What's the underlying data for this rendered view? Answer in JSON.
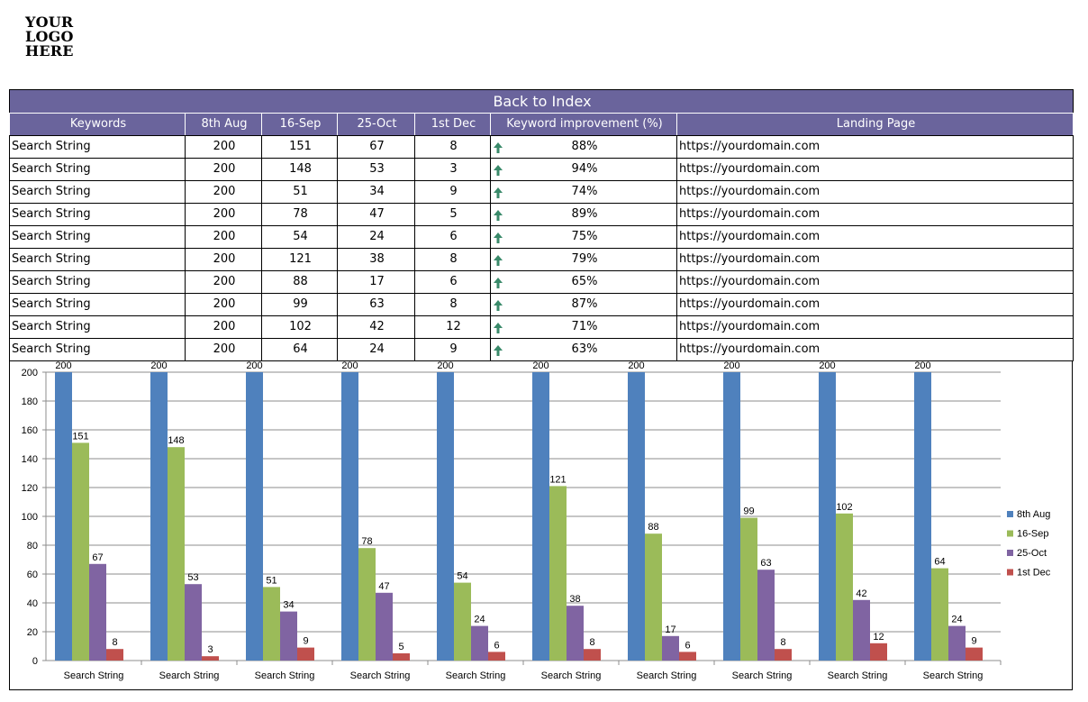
{
  "logo": {
    "lines": [
      "YOUR",
      "LOGO",
      "HERE"
    ]
  },
  "table": {
    "title": "Back to Index",
    "headers": [
      "Keywords",
      "8th Aug",
      "16-Sep",
      "25-Oct",
      "1st Dec",
      "Keyword improvement (%)",
      "Landing Page"
    ],
    "improvement_icon": "up-arrow-icon",
    "arrow_color": "#3a8a6a",
    "rows": [
      {
        "keyword": "Search String",
        "aug": "200",
        "sep": "151",
        "oct": "67",
        "dec": "8",
        "improvement": "88%",
        "page": "https://yourdomain.com"
      },
      {
        "keyword": "Search String",
        "aug": "200",
        "sep": "148",
        "oct": "53",
        "dec": "3",
        "improvement": "94%",
        "page": "https://yourdomain.com"
      },
      {
        "keyword": "Search String",
        "aug": "200",
        "sep": "51",
        "oct": "34",
        "dec": "9",
        "improvement": "74%",
        "page": "https://yourdomain.com"
      },
      {
        "keyword": "Search String",
        "aug": "200",
        "sep": "78",
        "oct": "47",
        "dec": "5",
        "improvement": "89%",
        "page": "https://yourdomain.com"
      },
      {
        "keyword": "Search String",
        "aug": "200",
        "sep": "54",
        "oct": "24",
        "dec": "6",
        "improvement": "75%",
        "page": "https://yourdomain.com"
      },
      {
        "keyword": "Search String",
        "aug": "200",
        "sep": "121",
        "oct": "38",
        "dec": "8",
        "improvement": "79%",
        "page": "https://yourdomain.com"
      },
      {
        "keyword": "Search String",
        "aug": "200",
        "sep": "88",
        "oct": "17",
        "dec": "6",
        "improvement": "65%",
        "page": "https://yourdomain.com"
      },
      {
        "keyword": "Search String",
        "aug": "200",
        "sep": "99",
        "oct": "63",
        "dec": "8",
        "improvement": "87%",
        "page": "https://yourdomain.com"
      },
      {
        "keyword": "Search String",
        "aug": "200",
        "sep": "102",
        "oct": "42",
        "dec": "12",
        "improvement": "71%",
        "page": "https://yourdomain.com"
      },
      {
        "keyword": "Search String",
        "aug": "200",
        "sep": "64",
        "oct": "24",
        "dec": "9",
        "improvement": "63%",
        "page": "https://yourdomain.com"
      }
    ]
  },
  "colors": {
    "header_bg": "#6a649c",
    "header_text": "#ffffff"
  },
  "chart_data": {
    "type": "bar",
    "title": "",
    "xlabel": "",
    "ylabel": "",
    "categories": [
      "Search String",
      "Search String",
      "Search String",
      "Search String",
      "Search String",
      "Search String",
      "Search String",
      "Search String",
      "Search String",
      "Search String"
    ],
    "series": [
      {
        "name": "8th Aug",
        "color": "#4f81bd",
        "values": [
          200,
          200,
          200,
          200,
          200,
          200,
          200,
          200,
          200,
          200
        ]
      },
      {
        "name": "16-Sep",
        "color": "#9bbb59",
        "values": [
          151,
          148,
          51,
          78,
          54,
          121,
          88,
          99,
          102,
          64
        ]
      },
      {
        "name": "25-Oct",
        "color": "#8064a2",
        "values": [
          67,
          53,
          34,
          47,
          24,
          38,
          17,
          63,
          42,
          24
        ]
      },
      {
        "name": "1st Dec",
        "color": "#c0504d",
        "values": [
          8,
          3,
          9,
          5,
          6,
          8,
          6,
          8,
          12,
          9
        ]
      }
    ],
    "ylim": [
      0,
      200
    ],
    "yticks": [
      0,
      20,
      40,
      60,
      80,
      100,
      120,
      140,
      160,
      180,
      200
    ],
    "grid": true,
    "data_labels": true,
    "legend_position": "right"
  }
}
